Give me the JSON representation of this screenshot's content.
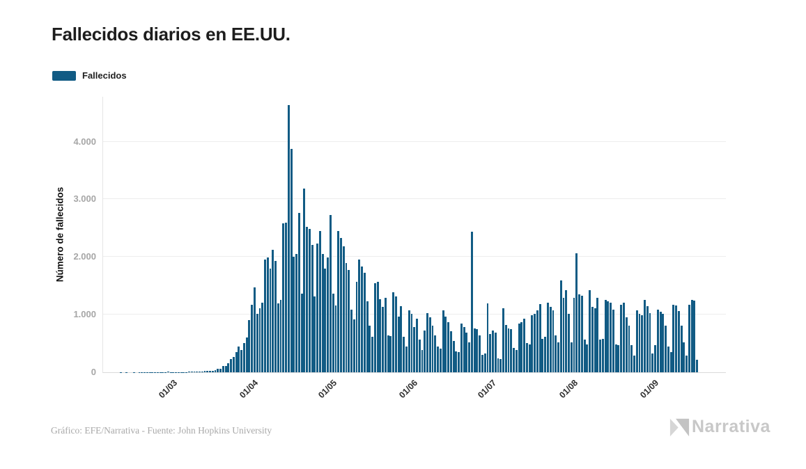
{
  "header": {
    "title": "Fallecidos diarios en EE.UU."
  },
  "legend": {
    "items": [
      {
        "label": "Fallecidos",
        "color": "#115b84"
      }
    ]
  },
  "footer": {
    "source": "Gráfico: EFE/Narrativa - Fuente: John Hopkins University",
    "logo_text": "Narrativa"
  },
  "colors": {
    "bar": "#115b84",
    "grid": "#ededed",
    "ytick_text": "#a6a6a6",
    "xtick_text": "#2e2e2e",
    "logo_gray": "#c8c8c8"
  },
  "chart_data": {
    "type": "bar",
    "title": "Fallecidos diarios en EE.UU.",
    "ylabel": "Número de fallecidos",
    "xlabel": "",
    "ylim": [
      0,
      4780
    ],
    "yticks": [
      0,
      1000,
      2000,
      3000,
      4000
    ],
    "ytick_labels": [
      "0",
      "1.000",
      "2.000",
      "3.000",
      "4.000"
    ],
    "xtick_labels": [
      "01/03",
      "01/04",
      "01/05",
      "01/06",
      "01/07",
      "01/08",
      "01/09"
    ],
    "grid": "horizontal",
    "legend_position": "top-left",
    "bar_color": "#115b84",
    "series": [
      {
        "name": "Fallecidos",
        "dates": [
          "09/02",
          "10/02",
          "11/02",
          "12/02",
          "13/02",
          "14/02",
          "15/02",
          "16/02",
          "17/02",
          "18/02",
          "19/02",
          "20/02",
          "21/02",
          "22/02",
          "23/02",
          "24/02",
          "25/02",
          "26/02",
          "27/02",
          "28/02",
          "29/02",
          "01/03",
          "02/03",
          "03/03",
          "04/03",
          "05/03",
          "06/03",
          "07/03",
          "08/03",
          "09/03",
          "10/03",
          "11/03",
          "12/03",
          "13/03",
          "14/03",
          "15/03",
          "16/03",
          "17/03",
          "18/03",
          "19/03",
          "20/03",
          "21/03",
          "22/03",
          "23/03",
          "24/03",
          "25/03",
          "26/03",
          "27/03",
          "28/03",
          "29/03",
          "30/03",
          "31/03",
          "01/04",
          "02/04",
          "03/04",
          "04/04",
          "05/04",
          "06/04",
          "07/04",
          "08/04",
          "09/04",
          "10/04",
          "11/04",
          "12/04",
          "13/04",
          "14/04",
          "15/04",
          "16/04",
          "17/04",
          "18/04",
          "19/04",
          "20/04",
          "21/04",
          "22/04",
          "23/04",
          "24/04",
          "25/04",
          "26/04",
          "27/04",
          "28/04",
          "29/04",
          "30/04",
          "01/05",
          "02/05",
          "03/05",
          "04/05",
          "05/05",
          "06/05",
          "07/05",
          "08/05",
          "09/05",
          "10/05",
          "11/05",
          "12/05",
          "13/05",
          "14/05",
          "15/05",
          "16/05",
          "17/05",
          "18/05",
          "19/05",
          "20/05",
          "21/05",
          "22/05",
          "23/05",
          "24/05",
          "25/05",
          "26/05",
          "27/05",
          "28/05",
          "29/05",
          "30/05",
          "31/05",
          "01/06",
          "02/06",
          "03/06",
          "04/06",
          "05/06",
          "06/06",
          "07/06",
          "08/06",
          "09/06",
          "10/06",
          "11/06",
          "12/06",
          "13/06",
          "14/06",
          "15/06",
          "16/06",
          "17/06",
          "18/06",
          "19/06",
          "20/06",
          "21/06",
          "22/06",
          "23/06",
          "24/06",
          "25/06",
          "26/06",
          "27/06",
          "28/06",
          "29/06",
          "30/06",
          "01/07",
          "02/07",
          "03/07",
          "04/07",
          "05/07",
          "06/07",
          "07/07",
          "08/07",
          "09/07",
          "10/07",
          "11/07",
          "12/07",
          "13/07",
          "14/07",
          "15/07",
          "16/07",
          "17/07",
          "18/07",
          "19/07",
          "20/07",
          "21/07",
          "22/07",
          "23/07",
          "24/07",
          "25/07",
          "26/07",
          "27/07",
          "28/07",
          "29/07",
          "30/07",
          "31/07",
          "01/08",
          "02/08",
          "03/08",
          "04/08",
          "05/08",
          "06/08",
          "07/08",
          "08/08",
          "09/08",
          "10/08",
          "11/08",
          "12/08",
          "13/08",
          "14/08",
          "15/08",
          "16/08",
          "17/08",
          "18/08",
          "19/08",
          "20/08",
          "21/08",
          "22/08",
          "23/08",
          "24/08",
          "25/08",
          "26/08",
          "27/08",
          "28/08",
          "29/08",
          "30/08",
          "31/08",
          "01/09",
          "02/09",
          "03/09",
          "04/09",
          "05/09",
          "06/09",
          "07/09",
          "08/09",
          "09/09",
          "10/09",
          "11/09",
          "12/09",
          "13/09",
          "14/09",
          "15/09",
          "16/09",
          "17/09",
          "18/09",
          "19/09"
        ],
        "values": [
          0,
          0,
          0,
          1,
          0,
          1,
          0,
          0,
          1,
          0,
          1,
          1,
          2,
          1,
          1,
          2,
          1,
          2,
          3,
          2,
          5,
          8,
          4,
          6,
          5,
          3,
          6,
          4,
          6,
          7,
          10,
          12,
          10,
          14,
          17,
          21,
          24,
          30,
          26,
          42,
          56,
          62,
          110,
          105,
          160,
          225,
          270,
          350,
          445,
          385,
          505,
          600,
          905,
          1170,
          1470,
          1010,
          1110,
          1205,
          1950,
          1990,
          1795,
          2120,
          1930,
          1190,
          1250,
          2580,
          2590,
          4630,
          3880,
          2000,
          2050,
          2760,
          1370,
          3190,
          2520,
          2490,
          2215,
          1310,
          2230,
          2455,
          2050,
          1795,
          1990,
          2730,
          1370,
          1155,
          2455,
          2330,
          2190,
          1900,
          1780,
          1085,
          920,
          1570,
          1950,
          1830,
          1730,
          1230,
          810,
          620,
          1550,
          1570,
          1270,
          1130,
          1290,
          645,
          625,
          1390,
          1310,
          970,
          1150,
          615,
          445,
          1070,
          1010,
          790,
          930,
          565,
          385,
          730,
          1030,
          950,
          810,
          645,
          445,
          405,
          1070,
          970,
          870,
          710,
          545,
          365,
          345,
          850,
          790,
          685,
          525,
          2435,
          765,
          745,
          645,
          305,
          325,
          1190,
          665,
          725,
          685,
          245,
          225,
          1110,
          825,
          765,
          745,
          425,
          385,
          845,
          865,
          925,
          505,
          485,
          990,
          1010,
          1070,
          1185,
          580,
          610,
          1205,
          1130,
          1070,
          645,
          525,
          1590,
          1290,
          1430,
          1010,
          525,
          1290,
          2070,
          1350,
          1330,
          565,
          485,
          1430,
          1130,
          1110,
          1290,
          565,
          585,
          1250,
          1230,
          1210,
          1090,
          485,
          465,
          1170,
          1210,
          950,
          805,
          465,
          285,
          1070,
          1010,
          990,
          1250,
          1150,
          1030,
          325,
          465,
          1090,
          1050,
          1010,
          805,
          445,
          345,
          1170,
          1155,
          1060,
          805,
          520,
          290,
          1175,
          1250,
          1245,
          220
        ]
      }
    ]
  }
}
